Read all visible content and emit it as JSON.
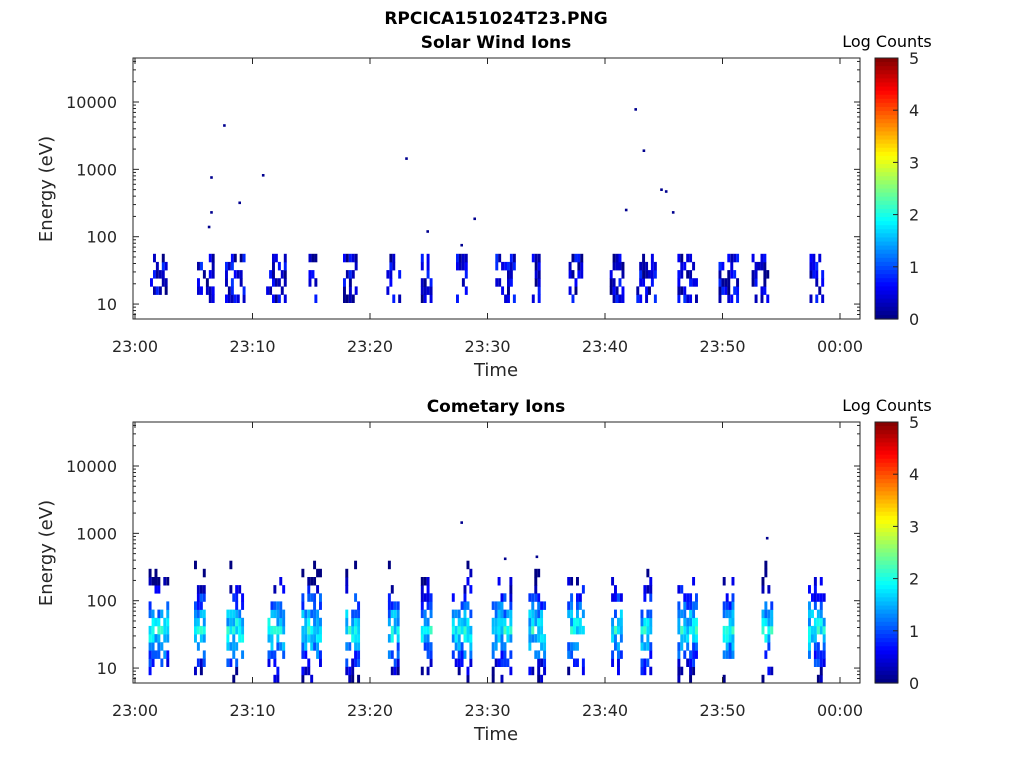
{
  "figure": {
    "title": "RPCICA151024T23.PNG",
    "colorbar_ticks": [
      "0",
      "1",
      "2",
      "3",
      "4",
      "5"
    ]
  },
  "chart_data": [
    {
      "type": "heatmap",
      "title": "Solar Wind Ions",
      "xlabel": "Time",
      "ylabel": "Energy (eV)",
      "colorbar_label": "Log Counts",
      "y_scale": "log",
      "ylim": [
        6,
        45000
      ],
      "xlim": [
        "23:00",
        "00:00"
      ],
      "x_tick_labels": [
        "23:00",
        "23:10",
        "23:20",
        "23:30",
        "23:40",
        "23:50",
        "00:00"
      ],
      "y_tick_labels": [
        "10",
        "100",
        "1000",
        "10000"
      ],
      "clim": [
        0,
        5
      ],
      "colormap": "jet",
      "bursts_minutes": [
        2,
        6,
        8.5,
        12,
        15,
        18.3,
        22,
        24.8,
        27.8,
        31.5,
        34,
        37.5,
        41,
        43.5,
        47,
        50.5,
        53.2,
        58
      ],
      "energy_band_eV": [
        10,
        55
      ],
      "sparse_points": [
        {
          "time_min": 6.3,
          "energy_eV": 140
        },
        {
          "time_min": 6.5,
          "energy_eV": 230
        },
        {
          "time_min": 6.5,
          "energy_eV": 760
        },
        {
          "time_min": 7.6,
          "energy_eV": 4500
        },
        {
          "time_min": 8.9,
          "energy_eV": 320
        },
        {
          "time_min": 10.9,
          "energy_eV": 820
        },
        {
          "time_min": 23.1,
          "energy_eV": 1450
        },
        {
          "time_min": 24.9,
          "energy_eV": 120
        },
        {
          "time_min": 27.8,
          "energy_eV": 75
        },
        {
          "time_min": 28.9,
          "energy_eV": 185
        },
        {
          "time_min": 41.8,
          "energy_eV": 250
        },
        {
          "time_min": 42.6,
          "energy_eV": 7800
        },
        {
          "time_min": 43.3,
          "energy_eV": 1900
        },
        {
          "time_min": 44.8,
          "energy_eV": 500
        },
        {
          "time_min": 45.2,
          "energy_eV": 470
        },
        {
          "time_min": 45.8,
          "energy_eV": 230
        }
      ],
      "log_counts_range": [
        0,
        1
      ]
    },
    {
      "type": "heatmap",
      "title": "Cometary Ions",
      "xlabel": "Time",
      "ylabel": "Energy (eV)",
      "colorbar_label": "Log Counts",
      "y_scale": "log",
      "ylim": [
        6,
        45000
      ],
      "xlim": [
        "23:00",
        "00:00"
      ],
      "x_tick_labels": [
        "23:00",
        "23:10",
        "23:20",
        "23:30",
        "23:40",
        "23:50",
        "00:00"
      ],
      "y_tick_labels": [
        "10",
        "100",
        "1000",
        "10000"
      ],
      "clim": [
        0,
        5
      ],
      "colormap": "jet",
      "bursts_minutes": [
        2,
        5.5,
        8.5,
        12,
        15,
        18.5,
        22,
        24.8,
        27.8,
        31.2,
        34.2,
        37.5,
        41,
        43.5,
        47,
        50.5,
        53.8,
        58
      ],
      "energy_band_eV": [
        6,
        400
      ],
      "peak_energy_eV": 38,
      "sparse_points": [
        {
          "time_min": 27.8,
          "energy_eV": 1450
        },
        {
          "time_min": 31.5,
          "energy_eV": 420
        },
        {
          "time_min": 34.2,
          "energy_eV": 450
        },
        {
          "time_min": 53.8,
          "energy_eV": 850
        }
      ],
      "log_counts_range": [
        0,
        2.3
      ]
    }
  ]
}
